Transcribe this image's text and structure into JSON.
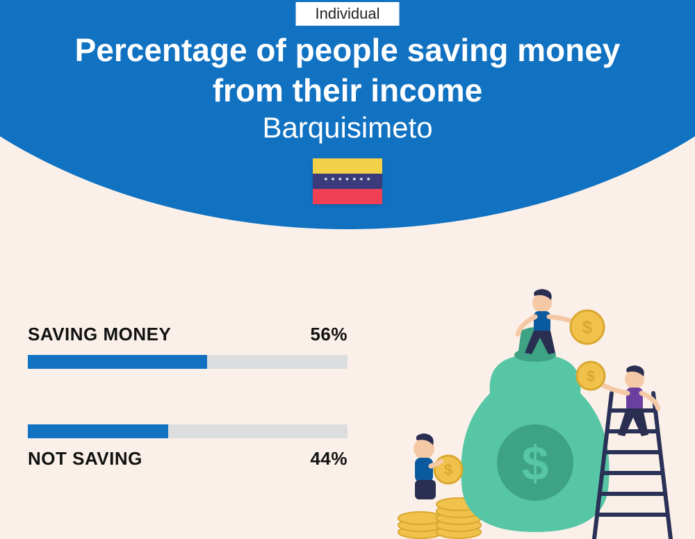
{
  "badge": "Individual",
  "title_line1": "Percentage of people saving money",
  "title_line2": "from their income",
  "subtitle": "Barquisimeto",
  "flag": {
    "yellow": "#f3d249",
    "blue": "#3b3b7c",
    "red": "#ef4056"
  },
  "bars": [
    {
      "label": "SAVING MONEY",
      "value_text": "56%",
      "value": 56,
      "label_position": "top"
    },
    {
      "label": "NOT SAVING",
      "value_text": "44%",
      "value": 44,
      "label_position": "bottom"
    }
  ],
  "colors": {
    "primary": "#1172c2",
    "track": "#dcdddf",
    "background": "#fbf0e9",
    "text": "#111111",
    "white": "#ffffff"
  },
  "illustration": {
    "bag": "#57c6a5",
    "bag_dark": "#3ea384",
    "coin": "#f0c14b",
    "coin_dark": "#d9a830",
    "person1_top": "#0a5aa0",
    "person1_bottom": "#2a2f52",
    "person2_top": "#6b3fa0",
    "person2_bottom": "#2a2f52",
    "person3_top": "#0a5aa0",
    "person3_bottom": "#2a2f52",
    "skin": "#f5c9a6",
    "hair": "#2a2f52",
    "ladder": "#2a3156"
  }
}
